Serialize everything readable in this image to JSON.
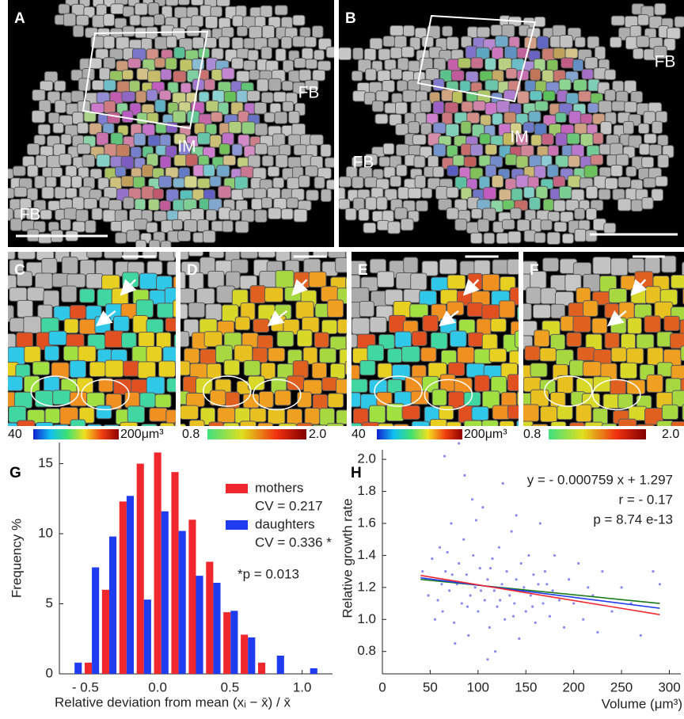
{
  "panels": [
    {
      "label": "A",
      "annotations": [
        "FB",
        "IM",
        "FB"
      ]
    },
    {
      "label": "B",
      "annotations": [
        "FB",
        "IM",
        "FB"
      ]
    },
    {
      "label": "C"
    },
    {
      "label": "D"
    },
    {
      "label": "E"
    },
    {
      "label": "F"
    }
  ],
  "colorbars": [
    {
      "min": "40",
      "max": "200μm³"
    },
    {
      "min": "0.8",
      "max": "2.0"
    },
    {
      "min": "40",
      "max": "200μm³"
    },
    {
      "min": "0.8",
      "max": "2.0"
    }
  ],
  "chart_data": [
    {
      "type": "bar",
      "panel": "G",
      "xlabel": "Relative deviation from mean (xᵢ − x̄) / x̄",
      "ylabel": "Frequency %",
      "xlim": [
        -0.68,
        1.21
      ],
      "ylim": [
        0,
        16.5
      ],
      "xticks": [
        {
          "value": -0.5,
          "label": "- 0.5"
        },
        {
          "value": 0,
          "label": "0.0"
        },
        {
          "value": 0.5,
          "label": "0.5"
        },
        {
          "value": 1,
          "label": "1.0"
        }
      ],
      "yticks": [
        0,
        5,
        10,
        15
      ],
      "series": [
        {
          "name": "mothers",
          "color": "#f0282d",
          "note": "CV = 0.217",
          "x": [
            -0.48,
            -0.36,
            -0.24,
            -0.12,
            0,
            0.12,
            0.24,
            0.36,
            0.48,
            0.6,
            0.72
          ],
          "values": [
            0.8,
            6.0,
            12.3,
            15.0,
            15.8,
            14.4,
            11.0,
            8.0,
            4.4,
            2.8,
            0.8
          ]
        },
        {
          "name": "daughters",
          "color": "#1f3cf0",
          "note": "CV = 0.336 *",
          "x": [
            -0.55,
            -0.43,
            -0.31,
            -0.19,
            -0.07,
            0.05,
            0.17,
            0.29,
            0.41,
            0.53,
            0.65,
            0.85,
            1.08
          ],
          "values": [
            0.8,
            7.6,
            9.8,
            12.7,
            5.3,
            11.6,
            10.2,
            7.0,
            6.5,
            4.5,
            2.6,
            1.3,
            0.4
          ]
        }
      ],
      "annotation": "*p = 0.013"
    },
    {
      "type": "scatter",
      "panel": "H",
      "xlabel": "Volume (μm³)",
      "ylabel": "Relative growth rate",
      "xlim": [
        0,
        312
      ],
      "ylim": [
        0.66,
        2.06
      ],
      "xticks": [
        0,
        50,
        100,
        150,
        200,
        250,
        300
      ],
      "yticks": [
        {
          "value": 0.8,
          "label": "0.8"
        },
        {
          "value": 1,
          "label": "1.0"
        },
        1.2,
        1.4,
        1.6,
        1.8,
        {
          "value": 2,
          "label": "2.0"
        }
      ],
      "annotations": [
        "y = - 0.000759 x + 1.297",
        "r =  - 0.17",
        "p = 8.74 e-13"
      ],
      "series": [
        {
          "type": "scatter",
          "color": "#8a8af0",
          "x": [
            45,
            52,
            58,
            60,
            63,
            66,
            70,
            72,
            75,
            78,
            80,
            83,
            85,
            88,
            90,
            92,
            95,
            97,
            100,
            102,
            105,
            107,
            110,
            112,
            115,
            117,
            120,
            122,
            125,
            128,
            130,
            133,
            135,
            138,
            140,
            143,
            145,
            148,
            150,
            153,
            155,
            158,
            160,
            163,
            165,
            168,
            170,
            175,
            178,
            180,
            185,
            190,
            195,
            200,
            205,
            210,
            215,
            220,
            225,
            230,
            240,
            250,
            260,
            270,
            283,
            290,
            55,
            68,
            76,
            86,
            94,
            98,
            118,
            126,
            65,
            80,
            140,
            110,
            48,
            42,
            62,
            73,
            89,
            103,
            113,
            123,
            137,
            147,
            157,
            172
          ],
          "values": [
            1.25,
            1.38,
            1.12,
            1.45,
            1.05,
            1.3,
            1.18,
            1.6,
            0.98,
            1.22,
            1.35,
            1.1,
            1.5,
            1.28,
            0.9,
            1.15,
            1.4,
            1.2,
            1.05,
            1.32,
            1.7,
            1.12,
            1.25,
            0.95,
            1.38,
            1.18,
            1.08,
            1.45,
            1.22,
            1.0,
            1.3,
            1.15,
            1.55,
            1.1,
            1.25,
            0.88,
            1.35,
            1.2,
            1.05,
            1.4,
            1.15,
            1.28,
            0.98,
            1.22,
            1.6,
            1.1,
            1.3,
            1.02,
            1.18,
            1.4,
            1.12,
            0.95,
            1.25,
            1.1,
            1.35,
            1.0,
            1.2,
            1.15,
            0.92,
            1.3,
            1.05,
            1.2,
            1.1,
            0.9,
            1.3,
            1.22,
            1.0,
            1.42,
            0.85,
            1.9,
            1.75,
            1.62,
            0.8,
            1.85,
            2.02,
            2.1,
            1.65,
            0.75,
            1.15,
            1.3,
            1.22,
            1.28,
            1.08,
            1.18,
            1.32,
            1.12,
            1.02,
            1.18,
            1.08,
            1.22
          ]
        },
        {
          "type": "line",
          "color": "#1a7a1a",
          "x": [
            40,
            290
          ],
          "values": [
            1.25,
            1.1
          ]
        },
        {
          "type": "line",
          "color": "#1f3cf0",
          "x": [
            40,
            290
          ],
          "values": [
            1.26,
            1.07
          ]
        },
        {
          "type": "line",
          "color": "#f0282d",
          "x": [
            40,
            290
          ],
          "values": [
            1.275,
            1.03
          ]
        }
      ]
    }
  ]
}
